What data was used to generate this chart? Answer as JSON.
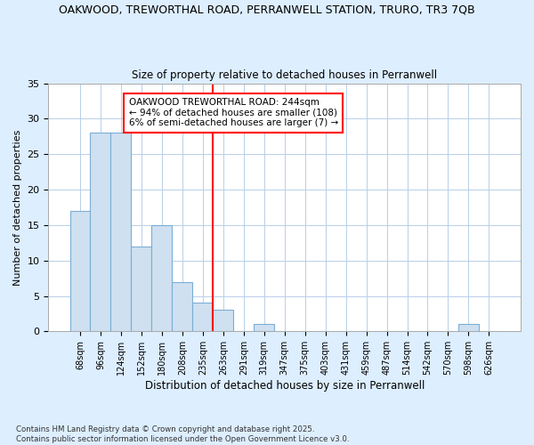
{
  "title1": "OAKWOOD, TREWORTHAL ROAD, PERRANWELL STATION, TRURO, TR3 7QB",
  "title2": "Size of property relative to detached houses in Perranwell",
  "xlabel": "Distribution of detached houses by size in Perranwell",
  "ylabel": "Number of detached properties",
  "categories": [
    "68sqm",
    "96sqm",
    "124sqm",
    "152sqm",
    "180sqm",
    "208sqm",
    "235sqm",
    "263sqm",
    "291sqm",
    "319sqm",
    "347sqm",
    "375sqm",
    "403sqm",
    "431sqm",
    "459sqm",
    "487sqm",
    "514sqm",
    "542sqm",
    "570sqm",
    "598sqm",
    "626sqm"
  ],
  "values": [
    17,
    28,
    28,
    12,
    15,
    7,
    4,
    3,
    0,
    1,
    0,
    0,
    0,
    0,
    0,
    0,
    0,
    0,
    0,
    1,
    0
  ],
  "bar_color": "#cfe0f0",
  "bar_edge_color": "#7aaed6",
  "bar_width": 1.0,
  "ylim": [
    0,
    35
  ],
  "yticks": [
    0,
    5,
    10,
    15,
    20,
    25,
    30,
    35
  ],
  "property_line_x": 6.5,
  "property_line_color": "red",
  "annotation_text": "OAKWOOD TREWORTHAL ROAD: 244sqm\n← 94% of detached houses are smaller (108)\n6% of semi-detached houses are larger (7) →",
  "annotation_box_color": "white",
  "annotation_edge_color": "red",
  "footnote": "Contains HM Land Registry data © Crown copyright and database right 2025.\nContains public sector information licensed under the Open Government Licence v3.0.",
  "bg_color": "#ddeeff",
  "plot_bg_color": "white",
  "grid_color": "#b8cfe8"
}
